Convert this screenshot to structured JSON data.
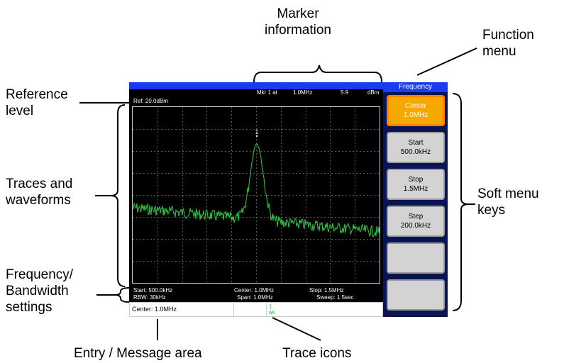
{
  "annotations": {
    "marker_information": "Marker\ninformation",
    "function_menu": "Function\nmenu",
    "reference_level": "Reference\nlevel",
    "traces_waveforms": "Traces and\nwaveforms",
    "freq_bw": "Frequency/\nBandwidth\nsettings",
    "soft_menu_keys": "Soft menu\nkeys",
    "entry_area": "Entry / Message area",
    "trace_icons": "Trace icons"
  },
  "screen": {
    "ref_level": "Ref: 20.0dBm",
    "marker": {
      "label": "Mkr 1 at",
      "freq": "1.0MHz",
      "value": "5.9",
      "unit": "dBm"
    },
    "marker_number": "1",
    "settings": {
      "start": "Start: 500.0kHz",
      "center": "Center: 1.0MHz",
      "stop": "Stop: 1.5MHz",
      "rbw": "RBW: 30kHz",
      "span": "Span: 1.0MHz",
      "sweep": "Sweep: 1.5sec"
    },
    "entry_text": "Center: 1.0MHz",
    "trace_icon_text": "1"
  },
  "menu": {
    "title": "Frequency",
    "keys": [
      {
        "label": "Center",
        "value": "1.0MHz",
        "active": true
      },
      {
        "label": "Start",
        "value": "500.0kHz",
        "active": false
      },
      {
        "label": "Stop",
        "value": "1.5MHz",
        "active": false
      },
      {
        "label": "Step",
        "value": "200.0kHz",
        "active": false
      },
      {
        "label": "",
        "value": "",
        "active": false
      },
      {
        "label": "",
        "value": "",
        "active": false
      }
    ]
  },
  "colors": {
    "trace": "#2ecc40",
    "title_bar": "#1a3cf0",
    "active_key": "#f4a800",
    "background": "#000000"
  }
}
